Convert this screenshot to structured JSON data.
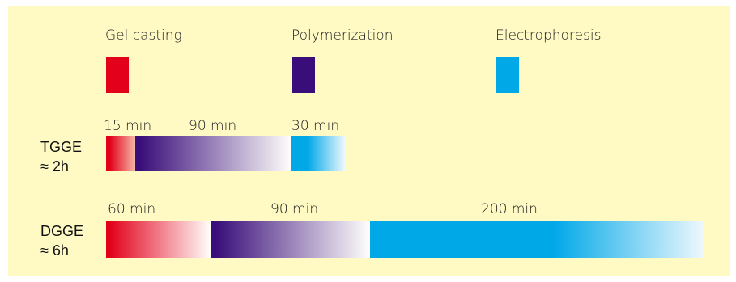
{
  "legend": [
    {
      "label": "Gel casting",
      "color": "#e2001a"
    },
    {
      "label": "Polymerization",
      "color": "#3a0e7a"
    },
    {
      "label": "Electrophoresis",
      "color": "#00a8e8"
    }
  ],
  "rows": [
    {
      "name": "TGGE",
      "total": "≈ 2h",
      "segments": [
        {
          "label": "15 min",
          "minutes": 15
        },
        {
          "label": "90 min",
          "minutes": 90
        },
        {
          "label": "30 min",
          "minutes": 30
        }
      ]
    },
    {
      "name": "DGGE",
      "total": "≈ 6h",
      "segments": [
        {
          "label": "60 min",
          "minutes": 60
        },
        {
          "label": "90 min",
          "minutes": 90
        },
        {
          "label": "200 min",
          "minutes": 200
        }
      ]
    }
  ]
}
